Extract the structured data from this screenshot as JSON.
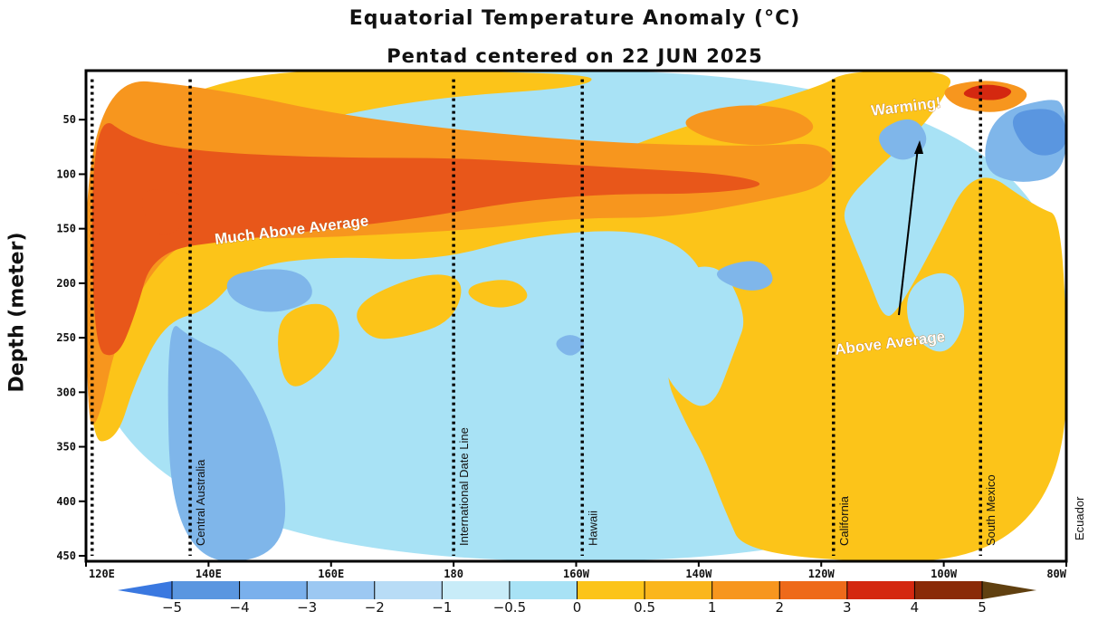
{
  "colors": {
    "much_above": "#e8571a",
    "above_orange": "#f7961e",
    "above_yellow": "#fcc419",
    "near_zero": "#a8e2f5",
    "below": "#7fb6ea",
    "cold": "#5a96e0",
    "hot": "#d42810",
    "frame": "#000000"
  },
  "chart_data": {
    "type": "heatmap",
    "title": "Equatorial Temperature Anomaly (°C)",
    "subtitle": "Pentad centered on 22 JUN 2025",
    "ylabel": "Depth (meter)",
    "xlabel": "",
    "x_ticks": [
      "120E",
      "140E",
      "160E",
      "180",
      "160W",
      "140W",
      "120W",
      "100W",
      "80W"
    ],
    "x_tick_lon": [
      120,
      140,
      160,
      180,
      200,
      220,
      240,
      260,
      280
    ],
    "xlim": [
      120,
      280
    ],
    "y_ticks": [
      50,
      100,
      150,
      200,
      250,
      300,
      350,
      400,
      450
    ],
    "ylim": [
      5,
      455
    ],
    "y_reversed": true,
    "colorbar": {
      "ticks": [
        "−5",
        "−4",
        "−3",
        "−2",
        "−1",
        "−0.5",
        "0",
        "0.5",
        "1",
        "2",
        "3",
        "4",
        "5"
      ],
      "colors": [
        "#3a78e0",
        "#5a96e0",
        "#7ab0ec",
        "#9cc8f2",
        "#b8dcf6",
        "#c8ecf8",
        "#a8e2f5",
        "#fcc419",
        "#fbb61c",
        "#f7961e",
        "#ee6a1a",
        "#d42810",
        "#8a2a08",
        "#604010"
      ]
    },
    "reference_lines": [
      {
        "lon": 121,
        "label": ""
      },
      {
        "lon": 137,
        "label": "Central Australia"
      },
      {
        "lon": 180,
        "label": "International Date Line"
      },
      {
        "lon": 201,
        "label": "Hawaii"
      },
      {
        "lon": 242,
        "label": "California"
      },
      {
        "lon": 266,
        "label": "South Mexico"
      },
      {
        "lon": 280,
        "label": "Ecuador"
      }
    ],
    "annotations": [
      "Much Above Average",
      "Warming!",
      "Above Average"
    ],
    "regions": [
      {
        "category": "near_zero",
        "points": [
          [
            120,
            5
          ],
          [
            280,
            5
          ],
          [
            280,
            455
          ],
          [
            120,
            455
          ]
        ]
      },
      {
        "category": "below",
        "points": [
          [
            133,
            230
          ],
          [
            134,
            455
          ],
          [
            153,
            455
          ],
          [
            152,
            350
          ],
          [
            145,
            270
          ],
          [
            137,
            250
          ]
        ]
      },
      {
        "category": "above_yellow",
        "points": [
          [
            120,
            5
          ],
          [
            202,
            5
          ],
          [
            203,
            20
          ],
          [
            175,
            30
          ],
          [
            150,
            60
          ],
          [
            142,
            110
          ],
          [
            200,
            95
          ],
          [
            215,
            60
          ],
          [
            240,
            20
          ],
          [
            244,
            5
          ],
          [
            262,
            5
          ],
          [
            260,
            30
          ],
          [
            256,
            60
          ],
          [
            250,
            90
          ],
          [
            243,
            130
          ],
          [
            245,
            160
          ],
          [
            248,
            200
          ],
          [
            250,
            230
          ],
          [
            252,
            230
          ],
          [
            258,
            170
          ],
          [
            265,
            90
          ],
          [
            275,
            130
          ],
          [
            280,
            140
          ],
          [
            280,
            455
          ],
          [
            228,
            455
          ],
          [
            224,
            405
          ],
          [
            221,
            360
          ],
          [
            218,
            330
          ],
          [
            214,
            280
          ],
          [
            218,
            240
          ],
          [
            222,
            190
          ],
          [
            213,
            150
          ],
          [
            193,
            155
          ],
          [
            177,
            180
          ],
          [
            160,
            175
          ],
          [
            146,
            185
          ],
          [
            140,
            225
          ],
          [
            133,
            235
          ],
          [
            128,
            290
          ],
          [
            125,
            345
          ],
          [
            120,
            345
          ]
        ]
      },
      {
        "category": "above_yellow",
        "points": [
          [
            183,
            200
          ],
          [
            190,
            195
          ],
          [
            193,
            215
          ],
          [
            187,
            225
          ],
          [
            182,
            212
          ]
        ]
      },
      {
        "category": "above_yellow",
        "points": [
          [
            163,
            220
          ],
          [
            175,
            190
          ],
          [
            182,
            195
          ],
          [
            180,
            235
          ],
          [
            172,
            250
          ],
          [
            166,
            252
          ]
        ]
      },
      {
        "category": "above_yellow",
        "points": [
          [
            152,
            225
          ],
          [
            160,
            215
          ],
          [
            162,
            255
          ],
          [
            158,
            285
          ],
          [
            153,
            300
          ],
          [
            151,
            260
          ]
        ]
      },
      {
        "category": "near_zero",
        "points": [
          [
            212,
            205
          ],
          [
            223,
            175
          ],
          [
            228,
            230
          ],
          [
            226,
            260
          ],
          [
            222,
            320
          ],
          [
            216,
            300
          ],
          [
            213,
            260
          ]
        ]
      },
      {
        "category": "near_zero",
        "points": [
          [
            254,
            200
          ],
          [
            262,
            185
          ],
          [
            264,
            235
          ],
          [
            260,
            270
          ],
          [
            254,
            245
          ]
        ]
      },
      {
        "category": "above_orange",
        "points": [
          [
            120,
            10
          ],
          [
            140,
            20
          ],
          [
            165,
            50
          ],
          [
            200,
            70
          ],
          [
            228,
            75
          ],
          [
            242,
            70
          ],
          [
            242,
            110
          ],
          [
            230,
            125
          ],
          [
            215,
            140
          ],
          [
            200,
            140
          ],
          [
            185,
            150
          ],
          [
            170,
            155
          ],
          [
            150,
            160
          ],
          [
            138,
            155
          ],
          [
            131,
            185
          ],
          [
            125,
            250
          ],
          [
            122,
            330
          ],
          [
            120,
            330
          ]
        ]
      },
      {
        "category": "above_orange",
        "points": [
          [
            216,
            50
          ],
          [
            226,
            35
          ],
          [
            236,
            40
          ],
          [
            240,
            60
          ],
          [
            232,
            75
          ],
          [
            222,
            70
          ]
        ]
      },
      {
        "category": "much_above",
        "points": [
          [
            121,
            40
          ],
          [
            128,
            70
          ],
          [
            140,
            80
          ],
          [
            160,
            85
          ],
          [
            180,
            85
          ],
          [
            195,
            90
          ],
          [
            210,
            95
          ],
          [
            225,
            100
          ],
          [
            232,
            110
          ],
          [
            222,
            118
          ],
          [
            205,
            118
          ],
          [
            190,
            125
          ],
          [
            175,
            140
          ],
          [
            160,
            150
          ],
          [
            145,
            160
          ],
          [
            131,
            170
          ],
          [
            128,
            230
          ],
          [
            125,
            270
          ],
          [
            121,
            260
          ]
        ]
      },
      {
        "category": "much_above",
        "points": [
          [
            128,
            110
          ],
          [
            138,
            120
          ],
          [
            136,
            150
          ],
          [
            131,
            160
          ]
        ]
      },
      {
        "category": "above_orange",
        "points": [
          [
            259,
            20
          ],
          [
            268,
            12
          ],
          [
            275,
            25
          ],
          [
            270,
            45
          ],
          [
            262,
            40
          ]
        ]
      },
      {
        "category": "hot",
        "points": [
          [
            262,
            28
          ],
          [
            266,
            16
          ],
          [
            272,
            22
          ],
          [
            269,
            34
          ]
        ]
      },
      {
        "category": "below",
        "points": [
          [
            249,
            60
          ],
          [
            255,
            45
          ],
          [
            258,
            70
          ],
          [
            254,
            90
          ],
          [
            250,
            80
          ]
        ]
      },
      {
        "category": "below",
        "points": [
          [
            268,
            45
          ],
          [
            277,
            30
          ],
          [
            280,
            35
          ],
          [
            280,
            100
          ],
          [
            272,
            110
          ],
          [
            266,
            95
          ]
        ]
      },
      {
        "category": "cold",
        "points": [
          [
            270,
            45
          ],
          [
            277,
            38
          ],
          [
            280,
            50
          ],
          [
            280,
            80
          ],
          [
            274,
            85
          ]
        ]
      },
      {
        "category": "below",
        "points": [
          [
            143,
            190
          ],
          [
            155,
            185
          ],
          [
            158,
            215
          ],
          [
            150,
            230
          ],
          [
            143,
            215
          ]
        ]
      },
      {
        "category": "below",
        "points": [
          [
            221,
            190
          ],
          [
            230,
            175
          ],
          [
            233,
            200
          ],
          [
            228,
            210
          ]
        ]
      },
      {
        "category": "below",
        "points": [
          [
            196,
            255
          ],
          [
            199,
            245
          ],
          [
            202,
            255
          ],
          [
            199,
            270
          ]
        ]
      }
    ]
  }
}
